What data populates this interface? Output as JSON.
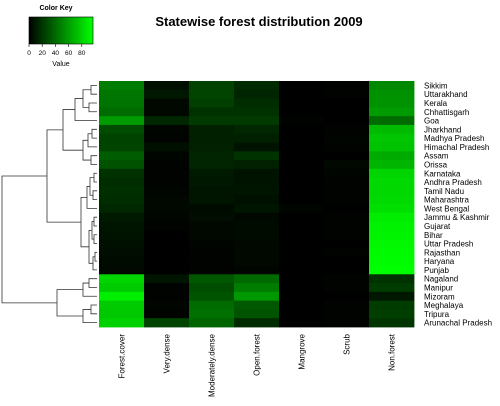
{
  "chart_data": {
    "type": "heatmap",
    "title": "Statewise forest distribution 2009",
    "rows": [
      "Sikkim",
      "Uttarakhand",
      "Kerala",
      "Chhattisgarh",
      "Goa",
      "Jharkhand",
      "Madhya Pradesh",
      "Himachal Pradesh",
      "Assam",
      "Orissa",
      "Karnataka",
      "Andhra Pradesh",
      "Tamil Nadu",
      "Maharashtra",
      "West Bengal",
      "Jammu & Kashmir",
      "Gujarat",
      "Bihar",
      "Uttar Pradesh",
      "Rajasthan",
      "Haryana",
      "Punjab",
      "Nagaland",
      "Manipur",
      "Mizoram",
      "Meghalaya",
      "Tripura",
      "Arunachal Pradesh"
    ],
    "columns": [
      "Forest.cover",
      "Very.dense",
      "Moderately.dense",
      "Open.forest",
      "Mangrove",
      "Scrub",
      "Non.forest"
    ],
    "values": [
      [
        47,
        6,
        25,
        16,
        0,
        1,
        52
      ],
      [
        45,
        9,
        26,
        14,
        0,
        1,
        55
      ],
      [
        44,
        3,
        24,
        17,
        0,
        0,
        56
      ],
      [
        41,
        3,
        19,
        19,
        0,
        0,
        59
      ],
      [
        59,
        15,
        22,
        22,
        1,
        0,
        41
      ],
      [
        29,
        2,
        12,
        15,
        0,
        1,
        71
      ],
      [
        25,
        1,
        12,
        12,
        0,
        2,
        75
      ],
      [
        26,
        6,
        12,
        7,
        0,
        1,
        74
      ],
      [
        35,
        2,
        14,
        19,
        0,
        0,
        65
      ],
      [
        31,
        1,
        14,
        12,
        0,
        3,
        69
      ],
      [
        19,
        1,
        10,
        7,
        0,
        2,
        81
      ],
      [
        17,
        1,
        9,
        7,
        0,
        1,
        83
      ],
      [
        18,
        2,
        8,
        8,
        0,
        1,
        82
      ],
      [
        17,
        3,
        8,
        6,
        0,
        1,
        83
      ],
      [
        15,
        3,
        4,
        8,
        2,
        0,
        85
      ],
      [
        10,
        2,
        5,
        3,
        0,
        1,
        90
      ],
      [
        8,
        1,
        3,
        4,
        0,
        1,
        92
      ],
      [
        7,
        0,
        3,
        4,
        0,
        1,
        93
      ],
      [
        6,
        0,
        2,
        3,
        0,
        0,
        94
      ],
      [
        5,
        0,
        1,
        3,
        0,
        1,
        95
      ],
      [
        4,
        0,
        1,
        3,
        0,
        0,
        96
      ],
      [
        3,
        0,
        1,
        2,
        0,
        0,
        97
      ],
      [
        81,
        8,
        33,
        40,
        0,
        1,
        19
      ],
      [
        77,
        1,
        29,
        47,
        0,
        1,
        23
      ],
      [
        91,
        1,
        32,
        58,
        0,
        0,
        9
      ],
      [
        77,
        2,
        41,
        34,
        0,
        1,
        23
      ],
      [
        76,
        1,
        43,
        32,
        0,
        1,
        24
      ],
      [
        80,
        26,
        38,
        16,
        0,
        1,
        20
      ]
    ],
    "color_key": {
      "title": "Color Key",
      "label": "Value",
      "ticks": [
        0,
        20,
        40,
        60,
        80
      ],
      "range": [
        0,
        97
      ],
      "low_color": "#000000",
      "high_color": "#00ff00"
    },
    "row_dendrogram": true
  }
}
